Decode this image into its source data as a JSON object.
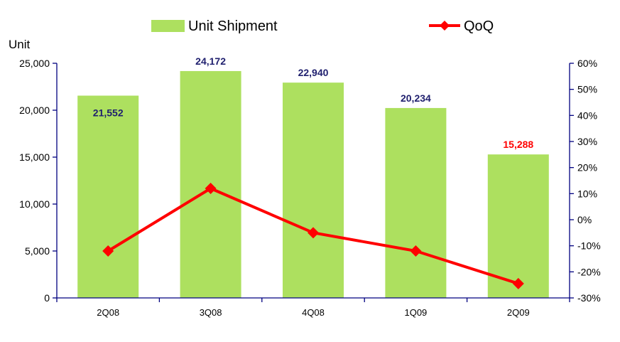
{
  "chart_data": {
    "type": "bar",
    "categories": [
      "2Q08",
      "3Q08",
      "4Q08",
      "1Q09",
      "2Q09"
    ],
    "series": [
      {
        "name": "Unit Shipment",
        "type": "bar",
        "axis": "left",
        "values": [
          21552,
          24172,
          22940,
          20234,
          15288
        ],
        "labels": [
          "21,552",
          "24,172",
          "22,940",
          "20,234",
          "15,288"
        ],
        "label_colors": [
          "#1F1F6E",
          "#1F1F6E",
          "#1F1F6E",
          "#1F1F6E",
          "#FF0000"
        ],
        "color": "#ADE05F"
      },
      {
        "name": "QoQ",
        "type": "line",
        "axis": "right",
        "values": [
          -0.12,
          0.12,
          -0.05,
          -0.12,
          -0.245
        ],
        "color": "#FF0000"
      }
    ],
    "ylabel": "Unit",
    "ylim": [
      0,
      25000
    ],
    "y_ticks": [
      "0",
      "5,000",
      "10,000",
      "15,000",
      "20,000",
      "25,000"
    ],
    "y2lim": [
      -0.3,
      0.6
    ],
    "y2_ticks": [
      "-30%",
      "-20%",
      "-10%",
      "0%",
      "10%",
      "20%",
      "30%",
      "40%",
      "50%",
      "60%"
    ],
    "grid": false,
    "legend": "top",
    "axis_color": "#000080"
  }
}
